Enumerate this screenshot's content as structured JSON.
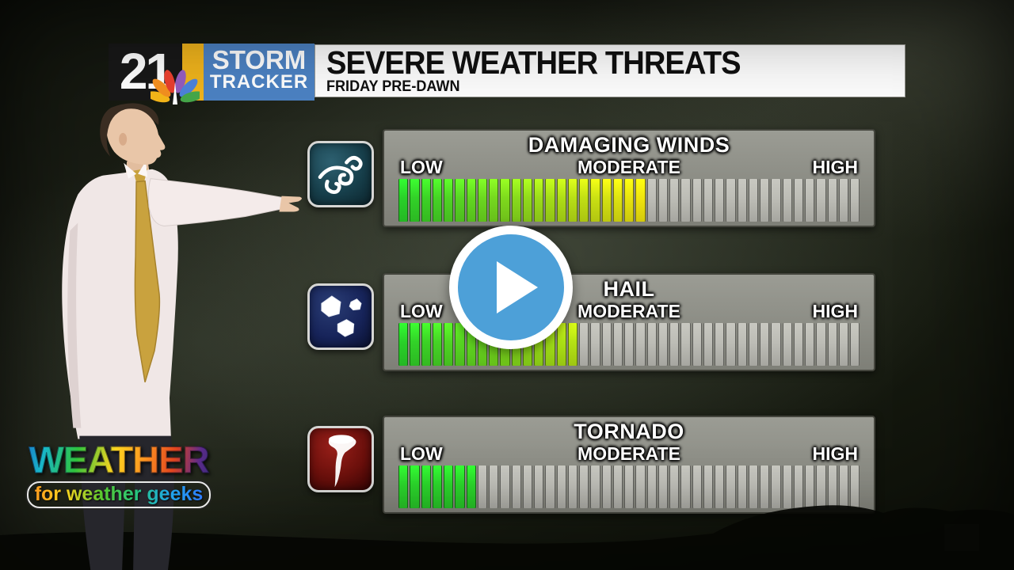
{
  "header": {
    "station_number": "21",
    "brand_line1": "STORM",
    "brand_line2": "TRACKER",
    "title": "SEVERE WEATHER THREATS",
    "subtitle": "FRIDAY PRE-DAWN"
  },
  "scale_labels": {
    "low": "LOW",
    "moderate": "MODERATE",
    "high": "HIGH"
  },
  "meters": [
    {
      "name": "damaging-winds",
      "title": "DAMAGING WINDS",
      "icon": "wind-swirl-icon",
      "segments_total": 41,
      "segments_filled": 22,
      "fill_percent": 54,
      "fill_color_start": "#29d029",
      "fill_color_end": "#f0e40e"
    },
    {
      "name": "hail",
      "title": "HAIL",
      "icon": "hailstones-icon",
      "segments_total": 41,
      "segments_filled": 16,
      "fill_percent": 39,
      "fill_color_start": "#29d029",
      "fill_color_end": "#b4e114"
    },
    {
      "name": "tornado",
      "title": "TORNADO",
      "icon": "tornado-icon",
      "segments_total": 41,
      "segments_filled": 7,
      "fill_percent": 17,
      "fill_color_start": "#2bd42b",
      "fill_color_end": "#2bd42b"
    }
  ],
  "player": {
    "play_label": "Play video"
  },
  "watermark": {
    "line1": "WEATHER",
    "line2": "for weather geeks"
  },
  "colors": {
    "segment_empty": "#bdbdb6",
    "accent_blue": "#4da0d8",
    "brand_blue": "#4c82c3",
    "brand_yellow": "#f0b41c",
    "panel_gray": "#8b8c84"
  },
  "chart_data": {
    "type": "bar",
    "title": "SEVERE WEATHER THREATS",
    "subtitle": "FRIDAY PRE-DAWN",
    "categories": [
      "DAMAGING WINDS",
      "HAIL",
      "TORNADO"
    ],
    "values": [
      54,
      39,
      17
    ],
    "value_unit": "percent of meter filled (LOW→HIGH scale)",
    "segments": {
      "total_per_meter": 41,
      "filled": [
        22,
        16,
        7
      ]
    },
    "scale_tick_labels": [
      "LOW",
      "MODERATE",
      "HIGH"
    ],
    "xlim": [
      0,
      100
    ],
    "orientation": "horizontal",
    "legend": "none",
    "notes": "Damaging winds meter reaches just past MODERATE (green→yellow); hail just below MODERATE (green→yellow-green); tornado low (green)."
  }
}
